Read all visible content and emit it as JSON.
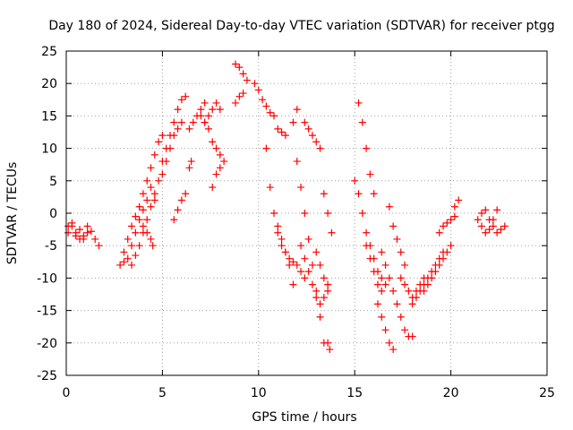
{
  "chart_data": {
    "type": "scatter",
    "title": "Day 180 of 2024, Sidereal Day-to-day VTEC variation (SDTVAR) for receiver ptgg",
    "xlabel": "GPS time / hours",
    "ylabel": "SDTVAR / TECUs",
    "xlim": [
      0,
      25
    ],
    "ylim": [
      -25,
      25
    ],
    "xticks": [
      0,
      5,
      10,
      15,
      20,
      25
    ],
    "yticks": [
      -25,
      -20,
      -15,
      -10,
      -5,
      0,
      5,
      10,
      15,
      20,
      25
    ],
    "xtick_labels": [
      "0",
      "5",
      "10",
      "15",
      "20",
      "25"
    ],
    "ytick_labels": [
      "-25",
      "-20",
      "-15",
      "-10",
      "-5",
      "0",
      "5",
      "10",
      "15",
      "20",
      "25"
    ],
    "grid": true,
    "marker": "+",
    "color": "#ff0000",
    "series": [
      {
        "name": "s1",
        "x": [
          0.1,
          0.3,
          0.5,
          0.7,
          0.9,
          1.1,
          1.3,
          1.5,
          1.7
        ],
        "y": [
          -3,
          -2,
          -3.5,
          -2.5,
          -4,
          -3,
          -2.8,
          -4,
          -5
        ]
      },
      {
        "name": "s2",
        "x": [
          0.1,
          0.3,
          0.5,
          0.7,
          0.9,
          1.1
        ],
        "y": [
          -2,
          -1.5,
          -3,
          -4,
          -3.5,
          -2
        ]
      },
      {
        "name": "s3",
        "x": [
          2.8,
          3.0,
          3.2,
          3.4,
          3.6,
          3.8,
          4.0,
          4.2,
          4.4,
          4.6,
          4.8,
          5.0
        ],
        "y": [
          -8,
          -6,
          -4,
          -2,
          -0.5,
          1,
          3,
          5,
          7,
          9,
          11,
          12
        ]
      },
      {
        "name": "s4",
        "x": [
          3.0,
          3.2,
          3.4,
          3.6,
          3.8,
          4.0,
          4.2,
          4.4
        ],
        "y": [
          -7.5,
          -7,
          -5,
          -3,
          -1,
          0.5,
          2,
          4
        ]
      },
      {
        "name": "s5",
        "x": [
          3.4,
          3.6,
          3.8,
          4.0,
          4.2,
          4.4,
          4.6
        ],
        "y": [
          -8,
          -6.5,
          -5,
          -3,
          -1,
          1,
          3
        ]
      },
      {
        "name": "s6",
        "x": [
          4.0,
          4.2,
          4.4,
          4.5
        ],
        "y": [
          -2,
          -3,
          -4,
          -5
        ]
      },
      {
        "name": "s7",
        "x": [
          4.6,
          4.8,
          5.0,
          5.2,
          5.4,
          5.6,
          5.8,
          6.0,
          6.2
        ],
        "y": [
          2,
          5,
          8,
          10,
          12,
          14,
          16,
          17.5,
          18
        ]
      },
      {
        "name": "s8",
        "x": [
          5.0,
          5.2,
          5.4,
          5.6,
          5.8,
          6.0
        ],
        "y": [
          6,
          8,
          10,
          12,
          13,
          14
        ]
      },
      {
        "name": "s9",
        "x": [
          5.6,
          5.8,
          6.0,
          6.2
        ],
        "y": [
          -1,
          0.5,
          2,
          3
        ]
      },
      {
        "name": "s10",
        "x": [
          6.4,
          6.6,
          6.8,
          7.0,
          7.2
        ],
        "y": [
          13,
          14,
          15,
          16,
          17
        ]
      },
      {
        "name": "s11",
        "x": [
          6.4,
          6.5
        ],
        "y": [
          7,
          8
        ]
      },
      {
        "name": "s12",
        "x": [
          7.0,
          7.2,
          7.4,
          7.6,
          7.8,
          8.0,
          8.2
        ],
        "y": [
          15,
          14,
          13,
          11,
          10,
          9,
          8
        ]
      },
      {
        "name": "s13",
        "x": [
          7.2,
          7.4,
          7.6,
          7.8,
          8.0
        ],
        "y": [
          14,
          15,
          16,
          17,
          16
        ]
      },
      {
        "name": "s14",
        "x": [
          7.6,
          7.8,
          8.0
        ],
        "y": [
          4,
          6,
          7
        ]
      },
      {
        "name": "s15",
        "x": [
          8.8,
          9.0,
          9.2,
          9.4
        ],
        "y": [
          23,
          22.5,
          21.5,
          20.5
        ]
      },
      {
        "name": "s16",
        "x": [
          8.8,
          9.0,
          9.2
        ],
        "y": [
          17,
          18,
          18.5
        ]
      },
      {
        "name": "s17",
        "x": [
          9.8,
          10.0,
          10.2,
          10.4,
          10.6,
          10.8
        ],
        "y": [
          20,
          19,
          17.5,
          16.5,
          15.5,
          15
        ]
      },
      {
        "name": "s18",
        "x": [
          11.0,
          11.2,
          11.4
        ],
        "y": [
          13,
          12.5,
          12
        ]
      },
      {
        "name": "s19",
        "x": [
          10.4,
          10.6,
          10.8,
          11.0,
          11.2,
          11.4,
          11.6,
          11.8,
          12.0,
          12.2,
          12.4
        ],
        "y": [
          10,
          4,
          0,
          -3,
          -5,
          -6,
          -7,
          -7.5,
          -8,
          -9,
          -10
        ]
      },
      {
        "name": "s20",
        "x": [
          11.0,
          11.2,
          11.4,
          11.6,
          11.8
        ],
        "y": [
          -2,
          -4,
          -6,
          -8,
          -11
        ]
      },
      {
        "name": "s21",
        "x": [
          11.8,
          12.0
        ],
        "y": [
          14,
          16
        ]
      },
      {
        "name": "s22",
        "x": [
          12.2,
          12.4,
          12.6,
          12.8,
          13.0,
          13.2,
          13.4,
          13.6
        ],
        "y": [
          -5,
          -7,
          -9,
          -11,
          -13,
          -14,
          -13,
          -12
        ]
      },
      {
        "name": "s23",
        "x": [
          12.0,
          12.2,
          12.4,
          12.6,
          12.8,
          13.0,
          13.2,
          13.4
        ],
        "y": [
          8,
          4,
          0,
          -4,
          -8,
          -12,
          -16,
          -20
        ]
      },
      {
        "name": "s24",
        "x": [
          12.4,
          12.6,
          12.8,
          13.0,
          13.2
        ],
        "y": [
          14,
          13,
          12,
          11,
          10
        ]
      },
      {
        "name": "s25",
        "x": [
          13.0,
          13.2,
          13.4,
          13.6
        ],
        "y": [
          -6,
          -8,
          -10,
          -11
        ]
      },
      {
        "name": "s26",
        "x": [
          13.4,
          13.6,
          13.8
        ],
        "y": [
          3,
          0,
          -3
        ]
      },
      {
        "name": "s27",
        "x": [
          13.6,
          13.7
        ],
        "y": [
          -20,
          -21
        ]
      },
      {
        "name": "s28",
        "x": [
          15.0,
          15.2,
          15.4,
          15.6,
          15.8,
          16.0,
          16.2,
          16.4,
          16.6
        ],
        "y": [
          5,
          3,
          0,
          -3,
          -5,
          -7,
          -9,
          -10,
          -11
        ]
      },
      {
        "name": "s29",
        "x": [
          15.2,
          15.4,
          15.6,
          15.8,
          16.0
        ],
        "y": [
          17,
          14,
          10,
          6,
          3
        ]
      },
      {
        "name": "s30",
        "x": [
          15.6,
          15.8,
          16.0,
          16.2,
          16.4
        ],
        "y": [
          -5,
          -7,
          -9,
          -11,
          -12
        ]
      },
      {
        "name": "s31",
        "x": [
          16.2,
          16.4,
          16.6,
          16.8,
          17.0
        ],
        "y": [
          -14,
          -16,
          -18,
          -20,
          -21
        ]
      },
      {
        "name": "s32",
        "x": [
          16.4,
          16.6,
          16.8,
          17.0,
          17.2,
          17.4,
          17.6,
          17.8,
          18.0
        ],
        "y": [
          -6,
          -8,
          -10,
          -12,
          -14,
          -16,
          -18,
          -19,
          -19
        ]
      },
      {
        "name": "s33",
        "x": [
          16.8,
          17.0,
          17.2,
          17.4,
          17.6
        ],
        "y": [
          1,
          -2,
          -4,
          -6,
          -8
        ]
      },
      {
        "name": "s34",
        "x": [
          17.4,
          17.6,
          17.8,
          18.0,
          18.2,
          18.4,
          18.6
        ],
        "y": [
          -10,
          -11,
          -12,
          -13,
          -12,
          -11,
          -10
        ]
      },
      {
        "name": "s35",
        "x": [
          18.0,
          18.2,
          18.4,
          18.6,
          18.8,
          19.0,
          19.2,
          19.4,
          19.6
        ],
        "y": [
          -14,
          -13,
          -12,
          -11,
          -10,
          -9,
          -8,
          -7,
          -6
        ]
      },
      {
        "name": "s36",
        "x": [
          18.6,
          18.8,
          19.0,
          19.2,
          19.4,
          19.6,
          19.8,
          20.0
        ],
        "y": [
          -12,
          -11,
          -10,
          -9,
          -8,
          -7,
          -6,
          -5
        ]
      },
      {
        "name": "s37",
        "x": [
          19.4,
          19.6,
          19.8,
          20.0,
          20.2
        ],
        "y": [
          -3,
          -2,
          -1.5,
          -1,
          -0.5
        ]
      },
      {
        "name": "s38",
        "x": [
          20.2,
          20.4
        ],
        "y": [
          1,
          2
        ]
      },
      {
        "name": "s39",
        "x": [
          21.4,
          21.6,
          21.8,
          22.0,
          22.2,
          22.4,
          22.6,
          22.8
        ],
        "y": [
          -1,
          0,
          0.5,
          -1,
          -2,
          -3,
          -2.5,
          -2
        ]
      },
      {
        "name": "s40",
        "x": [
          21.6,
          21.8,
          22.0,
          22.2,
          22.4
        ],
        "y": [
          -2,
          -3,
          -2.5,
          -1,
          0.5
        ]
      }
    ]
  }
}
